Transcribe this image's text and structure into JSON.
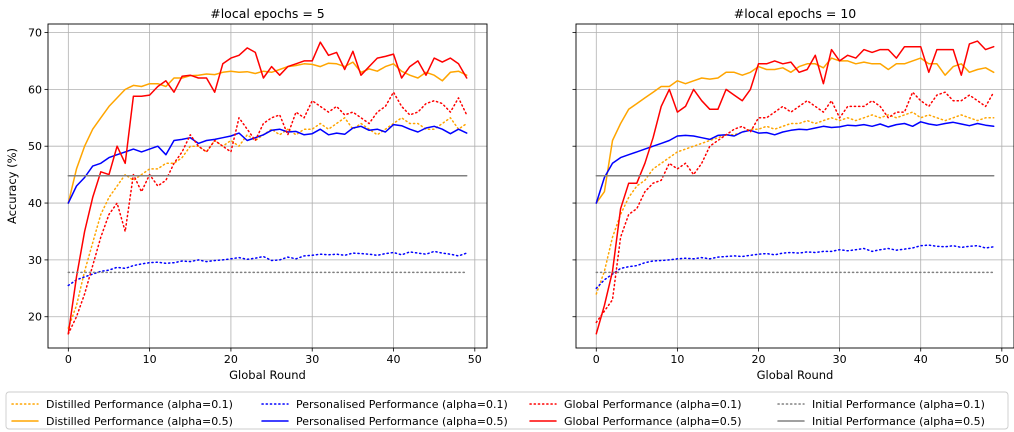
{
  "chart_data": [
    {
      "type": "line",
      "title": "#local epochs = 5",
      "xlabel": "Global Round",
      "ylabel": "Accuracy (%)",
      "xlim": [
        -2.5,
        51.5
      ],
      "ylim": [
        14.5,
        71.5
      ],
      "xticks": [
        0,
        10,
        20,
        30,
        40,
        50
      ],
      "yticks": [
        20,
        30,
        40,
        50,
        60,
        70
      ],
      "grid": true,
      "x": [
        0,
        1,
        2,
        3,
        4,
        5,
        6,
        7,
        8,
        9,
        10,
        11,
        12,
        13,
        14,
        15,
        16,
        17,
        18,
        19,
        20,
        21,
        22,
        23,
        24,
        25,
        26,
        27,
        28,
        29,
        30,
        31,
        32,
        33,
        34,
        35,
        36,
        37,
        38,
        39,
        40,
        41,
        42,
        43,
        44,
        45,
        46,
        47,
        48,
        49
      ],
      "series": [
        {
          "name": "Distilled Performance (alpha=0.1)",
          "color": "#FFA500",
          "style": "dotted",
          "values": [
            18,
            22,
            28,
            33,
            38,
            41,
            43,
            45,
            44,
            45,
            46,
            46,
            47,
            47,
            48,
            50,
            50,
            49,
            51,
            50,
            51,
            50,
            52,
            51,
            52,
            53,
            52,
            53,
            52,
            53,
            53,
            54,
            53,
            54,
            55,
            53,
            54,
            53,
            52,
            53,
            54,
            55,
            54,
            54,
            53,
            53,
            54,
            55,
            53,
            54
          ]
        },
        {
          "name": "Distilled Performance (alpha=0.5)",
          "color": "#FFA500",
          "style": "solid",
          "values": [
            40,
            46,
            50,
            53,
            55,
            57,
            58.5,
            60,
            60.7,
            60.5,
            61,
            61,
            60.5,
            62,
            62,
            62.4,
            62.5,
            62.7,
            62.6,
            63,
            63.2,
            63,
            63.1,
            62.8,
            63.2,
            63,
            63.5,
            64,
            64.2,
            64.5,
            64.4,
            64,
            64.6,
            64.5,
            64,
            64.8,
            63,
            63.6,
            63.2,
            64,
            64.5,
            63.2,
            62.5,
            62,
            63,
            62.5,
            61.5,
            63,
            63.2,
            62.5
          ]
        },
        {
          "name": "Personalised Performance (alpha=0.1)",
          "color": "#0000FF",
          "style": "dotted",
          "values": [
            25.5,
            26.5,
            27,
            27.5,
            28,
            28.2,
            28.7,
            28.5,
            29,
            29.3,
            29.5,
            29.6,
            29.4,
            29.5,
            29.8,
            29.7,
            30,
            29.7,
            29.9,
            30,
            30.2,
            30.4,
            30.1,
            30.3,
            30.6,
            29.9,
            30,
            30.5,
            30.2,
            30.7,
            30.8,
            31,
            30.9,
            31,
            30.8,
            31.2,
            31.1,
            31,
            30.8,
            31.1,
            31.3,
            30.9,
            31.4,
            31.2,
            31,
            31.5,
            31.2,
            31,
            30.7,
            31.2
          ]
        },
        {
          "name": "Personalised Performance (alpha=0.5)",
          "color": "#0000FF",
          "style": "solid",
          "values": [
            40,
            43,
            44.5,
            46.5,
            47,
            48,
            48.5,
            49,
            49.5,
            49,
            49.5,
            50,
            48.5,
            51,
            51.2,
            51.5,
            50.5,
            51,
            51.2,
            51.5,
            51.8,
            52.3,
            51,
            51.5,
            52,
            52.8,
            53,
            52.5,
            52.6,
            52,
            52.2,
            53,
            52,
            52.3,
            52.1,
            53.2,
            53.5,
            52.8,
            53,
            52.5,
            53.8,
            53.6,
            53,
            52.5,
            53.2,
            53.5,
            53,
            52.2,
            53,
            52.3
          ]
        },
        {
          "name": "Global Performance (alpha=0.1)",
          "color": "#FF0000",
          "style": "dotted",
          "values": [
            17,
            20,
            24,
            29,
            34,
            38,
            40,
            35,
            45,
            42,
            45,
            43,
            44,
            47,
            49,
            52,
            50,
            49,
            51,
            50,
            49,
            55,
            53,
            51,
            54,
            55,
            55.5,
            52,
            56,
            55,
            58,
            57,
            56,
            57,
            55.5,
            56,
            55,
            54,
            56,
            57,
            59.5,
            57,
            55.5,
            56,
            57.5,
            58,
            57.5,
            56,
            58.5,
            55.5
          ]
        },
        {
          "name": "Global Performance (alpha=0.5)",
          "color": "#FF0000",
          "style": "solid",
          "values": [
            17,
            27,
            35,
            41,
            45.5,
            45,
            50,
            47,
            58.8,
            58.8,
            59,
            60.5,
            61.5,
            59.5,
            62.3,
            62.5,
            62,
            62,
            59.5,
            64.5,
            65.5,
            66,
            67.3,
            66.5,
            62,
            64,
            62.5,
            64,
            64.5,
            65,
            65,
            68.3,
            66,
            66.5,
            63.5,
            66.7,
            62.5,
            64,
            65.5,
            65.8,
            66.2,
            62,
            64,
            65,
            62.5,
            65.5,
            64.8,
            65.5,
            64.5,
            62
          ]
        },
        {
          "name": "Initial Performance (alpha=0.1)",
          "color": "#808080",
          "style": "dotted",
          "values": [
            27.8,
            27.8,
            27.8,
            27.8,
            27.8,
            27.8,
            27.8,
            27.8,
            27.8,
            27.8,
            27.8,
            27.8,
            27.8,
            27.8,
            27.8,
            27.8,
            27.8,
            27.8,
            27.8,
            27.8,
            27.8,
            27.8,
            27.8,
            27.8,
            27.8,
            27.8,
            27.8,
            27.8,
            27.8,
            27.8,
            27.8,
            27.8,
            27.8,
            27.8,
            27.8,
            27.8,
            27.8,
            27.8,
            27.8,
            27.8,
            27.8,
            27.8,
            27.8,
            27.8,
            27.8,
            27.8,
            27.8,
            27.8,
            27.8,
            27.8
          ]
        },
        {
          "name": "Initial Performance (alpha=0.5)",
          "color": "#808080",
          "style": "solid",
          "values": [
            44.8,
            44.8,
            44.8,
            44.8,
            44.8,
            44.8,
            44.8,
            44.8,
            44.8,
            44.8,
            44.8,
            44.8,
            44.8,
            44.8,
            44.8,
            44.8,
            44.8,
            44.8,
            44.8,
            44.8,
            44.8,
            44.8,
            44.8,
            44.8,
            44.8,
            44.8,
            44.8,
            44.8,
            44.8,
            44.8,
            44.8,
            44.8,
            44.8,
            44.8,
            44.8,
            44.8,
            44.8,
            44.8,
            44.8,
            44.8,
            44.8,
            44.8,
            44.8,
            44.8,
            44.8,
            44.8,
            44.8,
            44.8,
            44.8,
            44.8
          ]
        }
      ]
    },
    {
      "type": "line",
      "title": "#local epochs = 10",
      "xlabel": "Global Round",
      "ylabel": "",
      "xlim": [
        -2.5,
        51.5
      ],
      "ylim": [
        14.5,
        71.5
      ],
      "xticks": [
        0,
        10,
        20,
        30,
        40,
        50
      ],
      "yticks": [
        20,
        30,
        40,
        50,
        60,
        70
      ],
      "grid": true,
      "x": [
        0,
        1,
        2,
        3,
        4,
        5,
        6,
        7,
        8,
        9,
        10,
        11,
        12,
        13,
        14,
        15,
        16,
        17,
        18,
        19,
        20,
        21,
        22,
        23,
        24,
        25,
        26,
        27,
        28,
        29,
        30,
        31,
        32,
        33,
        34,
        35,
        36,
        37,
        38,
        39,
        40,
        41,
        42,
        43,
        44,
        45,
        46,
        47,
        48,
        49
      ],
      "series": [
        {
          "name": "Distilled Performance (alpha=0.1)",
          "color": "#FFA500",
          "style": "dotted",
          "values": [
            24,
            28,
            34,
            38,
            41,
            43,
            44,
            46,
            47,
            48,
            49,
            49.5,
            50,
            50.5,
            51,
            51.5,
            52,
            52,
            52.5,
            53,
            53,
            53.5,
            53,
            53.5,
            54,
            54,
            54.5,
            54,
            54.5,
            55,
            54.5,
            55,
            54.5,
            55,
            55.5,
            55,
            55.5,
            55,
            55.5,
            56,
            55,
            55.5,
            55,
            54.5,
            55,
            55.5,
            55,
            54.5,
            55,
            55
          ]
        },
        {
          "name": "Distilled Performance (alpha=0.5)",
          "color": "#FFA500",
          "style": "solid",
          "values": [
            40,
            42,
            51,
            54,
            56.5,
            57.5,
            58.5,
            59.5,
            60.5,
            60.5,
            61.5,
            61,
            61.5,
            62,
            61.8,
            62,
            63,
            63,
            62.5,
            63,
            64,
            63.5,
            63.5,
            63.8,
            63,
            64,
            64.5,
            64.5,
            63.8,
            65.5,
            65,
            65,
            64.5,
            64.8,
            64.5,
            64.5,
            63.5,
            64.5,
            64.5,
            65,
            65.5,
            64.5,
            64.5,
            62.5,
            64,
            64.5,
            63,
            63.5,
            63.8,
            63
          ]
        },
        {
          "name": "Personalised Performance (alpha=0.1)",
          "color": "#0000FF",
          "style": "dotted",
          "values": [
            25,
            26.5,
            27.5,
            28.5,
            28.8,
            29,
            29.5,
            29.8,
            29.9,
            30,
            30.2,
            30.3,
            30.2,
            30.4,
            30.2,
            30.5,
            30.6,
            30.7,
            30.6,
            30.8,
            31,
            31.1,
            30.9,
            31.2,
            31.3,
            31.2,
            31.4,
            31.3,
            31.5,
            31.5,
            31.8,
            31.6,
            31.8,
            32,
            31.5,
            31.8,
            32,
            31.7,
            31.9,
            32.1,
            32.5,
            32.6,
            32.4,
            32.3,
            32.5,
            32.2,
            32.4,
            32.5,
            32.1,
            32.3
          ]
        },
        {
          "name": "Personalised Performance (alpha=0.5)",
          "color": "#0000FF",
          "style": "solid",
          "values": [
            40,
            44.5,
            47,
            48,
            48.5,
            49,
            49.5,
            50,
            50.5,
            51,
            51.8,
            51.9,
            51.8,
            51.5,
            51.2,
            51.9,
            52,
            51.8,
            52.5,
            52.8,
            52.3,
            52.4,
            52,
            52.5,
            52.8,
            53,
            52.9,
            53.2,
            53.5,
            53.3,
            53.4,
            53.7,
            53.6,
            53.8,
            53.5,
            53.9,
            53.4,
            53.8,
            54,
            53.5,
            54.3,
            53.9,
            53.7,
            54,
            54.2,
            53.9,
            53.6,
            54,
            53.7,
            53.5
          ]
        },
        {
          "name": "Global Performance (alpha=0.1)",
          "color": "#FF0000",
          "style": "dotted",
          "values": [
            19,
            21,
            23,
            34,
            38,
            39,
            42,
            43.5,
            44,
            47,
            46,
            47,
            45,
            47,
            50,
            51,
            52,
            53,
            53.5,
            52.5,
            55,
            55,
            56,
            57,
            56,
            57,
            58,
            57,
            56,
            58,
            55,
            57,
            57,
            57,
            58,
            57,
            55,
            56,
            56,
            59.5,
            58,
            57,
            59,
            59.5,
            58,
            58,
            59,
            58,
            57,
            59.5
          ]
        },
        {
          "name": "Global Performance (alpha=0.5)",
          "color": "#FF0000",
          "style": "solid",
          "values": [
            17,
            22,
            28,
            39,
            43.5,
            43.5,
            47,
            51.5,
            57,
            60,
            56,
            57,
            60,
            58,
            56.5,
            56.5,
            60,
            59,
            58,
            60,
            64.5,
            64.5,
            65,
            64.5,
            64.8,
            63,
            63.5,
            66,
            61,
            67,
            65,
            66,
            65.5,
            67,
            66.5,
            67,
            67,
            65.5,
            67.5,
            67.5,
            67.5,
            63,
            67,
            67,
            67,
            62.5,
            68,
            68.5,
            67,
            67.5
          ]
        },
        {
          "name": "Initial Performance (alpha=0.1)",
          "color": "#808080",
          "style": "dotted",
          "values": [
            27.8,
            27.8,
            27.8,
            27.8,
            27.8,
            27.8,
            27.8,
            27.8,
            27.8,
            27.8,
            27.8,
            27.8,
            27.8,
            27.8,
            27.8,
            27.8,
            27.8,
            27.8,
            27.8,
            27.8,
            27.8,
            27.8,
            27.8,
            27.8,
            27.8,
            27.8,
            27.8,
            27.8,
            27.8,
            27.8,
            27.8,
            27.8,
            27.8,
            27.8,
            27.8,
            27.8,
            27.8,
            27.8,
            27.8,
            27.8,
            27.8,
            27.8,
            27.8,
            27.8,
            27.8,
            27.8,
            27.8,
            27.8,
            27.8,
            27.8
          ]
        },
        {
          "name": "Initial Performance (alpha=0.5)",
          "color": "#808080",
          "style": "solid",
          "values": [
            44.8,
            44.8,
            44.8,
            44.8,
            44.8,
            44.8,
            44.8,
            44.8,
            44.8,
            44.8,
            44.8,
            44.8,
            44.8,
            44.8,
            44.8,
            44.8,
            44.8,
            44.8,
            44.8,
            44.8,
            44.8,
            44.8,
            44.8,
            44.8,
            44.8,
            44.8,
            44.8,
            44.8,
            44.8,
            44.8,
            44.8,
            44.8,
            44.8,
            44.8,
            44.8,
            44.8,
            44.8,
            44.8,
            44.8,
            44.8,
            44.8,
            44.8,
            44.8,
            44.8,
            44.8,
            44.8,
            44.8,
            44.8,
            44.8,
            44.8
          ]
        }
      ]
    }
  ],
  "legend": {
    "placement": "bottom",
    "entries": [
      {
        "label": "Distilled Performance (alpha=0.1)",
        "color": "#FFA500",
        "style": "dotted"
      },
      {
        "label": "Personalised Performance (alpha=0.1)",
        "color": "#0000FF",
        "style": "dotted"
      },
      {
        "label": "Global Performance (alpha=0.1)",
        "color": "#FF0000",
        "style": "dotted"
      },
      {
        "label": "Initial Performance (alpha=0.1)",
        "color": "#808080",
        "style": "dotted"
      },
      {
        "label": "Distilled Performance (alpha=0.5)",
        "color": "#FFA500",
        "style": "solid"
      },
      {
        "label": "Personalised Performance (alpha=0.5)",
        "color": "#0000FF",
        "style": "solid"
      },
      {
        "label": "Global Performance (alpha=0.5)",
        "color": "#FF0000",
        "style": "solid"
      },
      {
        "label": "Initial Performance (alpha=0.5)",
        "color": "#808080",
        "style": "solid"
      }
    ]
  }
}
